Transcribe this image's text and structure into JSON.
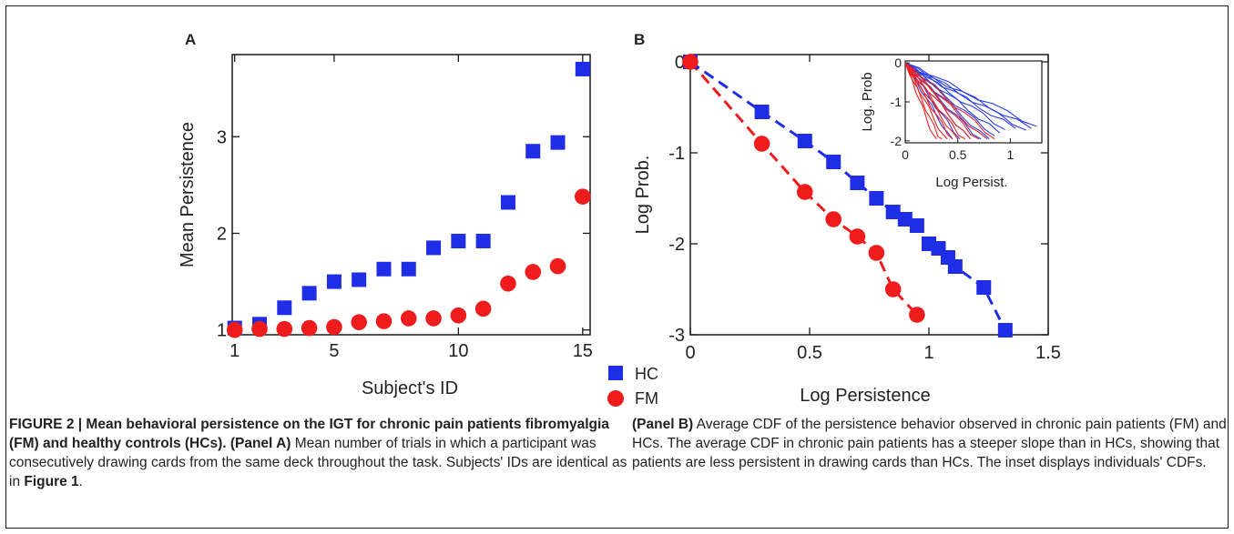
{
  "chart_data": [
    {
      "panel_label": "A",
      "type": "scatter",
      "xlabel": "Subject's ID",
      "ylabel": "Mean Persistence",
      "xlim": [
        0.9,
        15.3
      ],
      "ylim": [
        0.95,
        3.85
      ],
      "xticks": [
        1,
        5,
        10,
        15
      ],
      "xtick_labels": [
        "1",
        "5",
        "10",
        "15"
      ],
      "yticks": [
        1,
        2,
        3
      ],
      "ytick_labels": [
        "1",
        "2",
        "3"
      ],
      "series": [
        {
          "name": "HC",
          "color": "#1f2ee6",
          "marker": "square",
          "x": [
            1,
            2,
            3,
            4,
            5,
            6,
            7,
            8,
            9,
            10,
            11,
            12,
            13,
            14,
            15
          ],
          "y": [
            1.02,
            1.06,
            1.23,
            1.38,
            1.5,
            1.52,
            1.63,
            1.63,
            1.85,
            1.92,
            1.92,
            2.32,
            2.85,
            2.94,
            3.7
          ]
        },
        {
          "name": "FM",
          "color": "#ee1c1c",
          "marker": "circle",
          "x": [
            1,
            2,
            3,
            4,
            5,
            6,
            7,
            8,
            9,
            10,
            11,
            12,
            13,
            14,
            15
          ],
          "y": [
            1.0,
            1.01,
            1.01,
            1.02,
            1.03,
            1.08,
            1.09,
            1.12,
            1.12,
            1.15,
            1.22,
            1.48,
            1.6,
            1.66,
            2.38
          ]
        }
      ]
    },
    {
      "panel_label": "B",
      "type": "line",
      "xlabel": "Log Persistence",
      "ylabel": "Log Prob.",
      "xlim": [
        0,
        1.5
      ],
      "ylim": [
        -3.0,
        0.08
      ],
      "xticks": [
        0,
        0.5,
        1,
        1.5
      ],
      "xtick_labels": [
        "0",
        "0.5",
        "1",
        "1.5"
      ],
      "yticks": [
        0,
        -1,
        -2,
        -3
      ],
      "ytick_labels": [
        "0",
        "-1",
        "-2",
        "-3"
      ],
      "series": [
        {
          "name": "HC",
          "color": "#1f2ee6",
          "marker": "square",
          "x": [
            0,
            0.3,
            0.48,
            0.6,
            0.7,
            0.78,
            0.85,
            0.9,
            0.95,
            1.0,
            1.04,
            1.08,
            1.11,
            1.23,
            1.32
          ],
          "y": [
            0,
            -0.55,
            -0.87,
            -1.1,
            -1.33,
            -1.5,
            -1.65,
            -1.73,
            -1.8,
            -2.0,
            -2.05,
            -2.15,
            -2.25,
            -2.48,
            -2.95
          ]
        },
        {
          "name": "FM",
          "color": "#ee1c1c",
          "marker": "circle",
          "x": [
            0,
            0.3,
            0.48,
            0.6,
            0.7,
            0.78,
            0.85,
            0.95
          ],
          "y": [
            0,
            -0.9,
            -1.43,
            -1.73,
            -1.92,
            -2.1,
            -2.5,
            -2.78
          ]
        }
      ],
      "inset": {
        "xlabel": "Log  Persist.",
        "ylabel": "Log. Prob",
        "xlim": [
          0,
          1.3
        ],
        "ylim": [
          -2.05,
          0.05
        ],
        "xticks": [
          0,
          0.5,
          1
        ],
        "xtick_labels": [
          "0",
          "0.5",
          "1"
        ],
        "yticks": [
          0,
          -1,
          -2
        ],
        "ytick_labels": [
          "0",
          "-1",
          "-2"
        ],
        "blue_slopes": [
          -1.3,
          -1.4,
          -1.5,
          -1.6,
          -1.8,
          -2.0,
          -2.2,
          -2.5,
          -2.8,
          -3.2,
          -3.8,
          -4.5
        ],
        "blue_ends": [
          1.25,
          1.2,
          1.15,
          1.05,
          0.95,
          0.9,
          0.85,
          0.8,
          0.72,
          0.62,
          0.52,
          0.45
        ],
        "red_slopes": [
          -2.3,
          -2.6,
          -2.9,
          -3.2,
          -3.6,
          -4.0,
          -4.5,
          -5.2,
          -6.0,
          -7.0
        ],
        "red_ends": [
          0.85,
          0.78,
          0.7,
          0.62,
          0.57,
          0.5,
          0.45,
          0.4,
          0.35,
          0.3
        ]
      }
    }
  ],
  "legend": {
    "hc_label": "HC",
    "fm_label": "FM"
  },
  "caption": {
    "left_bold": "FIGURE 2 | Mean behavioral persistence on the IGT for chronic pain patients fibromyalgia (FM) and healthy controls (HCs). (Panel A)",
    "left_text_1": " Mean number of trials in which a participant was consecutively drawing cards from the same deck throughout the task. Subjects' IDs are identical as in ",
    "left_ref": "Figure 1",
    "left_text_2": ".",
    "right_bold": "(Panel B)",
    "right_text": " Average CDF of the persistence behavior observed in chronic pain patients (FM) and HCs. The average CDF in chronic pain patients has a steeper slope than in HCs, showing that patients are less persistent in drawing cards than HCs. The inset displays individuals' CDFs."
  }
}
